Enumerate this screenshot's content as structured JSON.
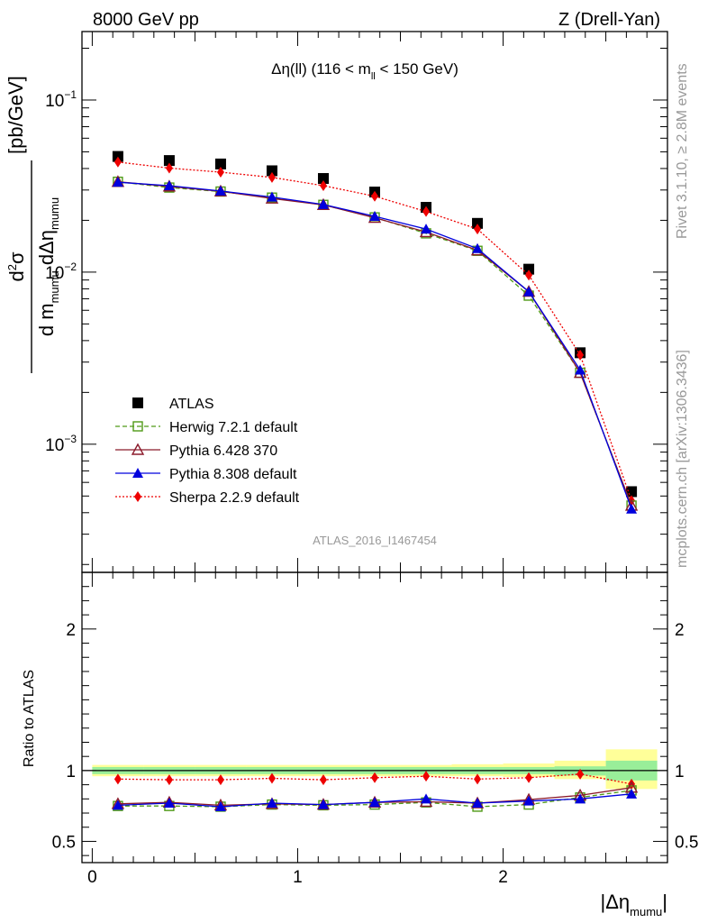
{
  "header": {
    "left": "8000 GeV pp",
    "right": "Z (Drell-Yan)"
  },
  "side_text": {
    "rivet": "Rivet 3.1.10, ≥ 2.8M events",
    "mcplots": "mcplots.cern.ch [arXiv:1306.3436]"
  },
  "analysis_id": "ATLAS_2016_I1467454",
  "chart_data": [
    {
      "panel": "main",
      "type": "scatter",
      "title": "Δη(ll) (116 < m_ll < 150 GeV)",
      "title_parts": {
        "pre": "Δη(ll) (116 < m",
        "sub": "ll",
        "post": " < 150 GeV)"
      },
      "ylabel": "d²σ / d m_mumu dΔη_mumu [pb/GeV]",
      "ylabel_parts": {
        "num": "d",
        "num_sup": "2",
        "num_sym": "σ",
        "den": "d m",
        "den_sub1": "mumu",
        "den_mid": " dΔη",
        "den_sub2": "mumu",
        "unit": "[pb/GeV]"
      },
      "yscale": "log",
      "ylim": [
        0.00018,
        0.25
      ],
      "xlim": [
        -0.05,
        2.8
      ],
      "yticks": [
        {
          "v": 0.1,
          "base": "10",
          "exp": "−1"
        },
        {
          "v": 0.01,
          "base": "10",
          "exp": "−2"
        },
        {
          "v": 0.001,
          "base": "10",
          "exp": "−3"
        }
      ],
      "legend_position": "center-left",
      "x": [
        0.125,
        0.375,
        0.625,
        0.875,
        1.125,
        1.375,
        1.625,
        1.875,
        2.125,
        2.375,
        2.625
      ],
      "series": [
        {
          "name": "ATLAS",
          "color": "#000000",
          "marker": "square-filled",
          "line": "none",
          "values": [
            0.047,
            0.0445,
            0.0425,
            0.0388,
            0.035,
            0.0292,
            0.0238,
            0.0192,
            0.0104,
            0.0034,
            0.00053
          ]
        },
        {
          "name": "Herwig 7.2.1 default",
          "color": "#4f9a17",
          "marker": "square-open",
          "line": "dashed",
          "values": [
            0.0335,
            0.031,
            0.0294,
            0.0271,
            0.0246,
            0.0208,
            0.0168,
            0.0133,
            0.0073,
            0.0026,
            0.00044
          ]
        },
        {
          "name": "Pythia 6.428 370",
          "color": "#8b1a2b",
          "marker": "triangle-open",
          "line": "solid",
          "values": [
            0.0335,
            0.0315,
            0.0295,
            0.0268,
            0.0246,
            0.0207,
            0.0171,
            0.0134,
            0.0077,
            0.0026,
            0.00044
          ]
        },
        {
          "name": "Pythia 8.308 default",
          "color": "#0000dd",
          "marker": "triangle-filled",
          "line": "solid",
          "values": [
            0.0333,
            0.0318,
            0.0296,
            0.0273,
            0.0247,
            0.0211,
            0.0178,
            0.0137,
            0.0077,
            0.0027,
            0.00042
          ]
        },
        {
          "name": "Sherpa 2.2.9 default",
          "color": "#ee0000",
          "marker": "diamond-filled",
          "line": "dotted",
          "values": [
            0.0436,
            0.0402,
            0.0381,
            0.0355,
            0.0318,
            0.0276,
            0.0225,
            0.0178,
            0.0096,
            0.0033,
            0.00047
          ]
        }
      ]
    },
    {
      "panel": "ratio",
      "type": "line",
      "ylabel": "Ratio to ATLAS",
      "xlabel": "|Δη_mumu|",
      "xlabel_parts": {
        "pre": "|Δη",
        "sub": "mumu",
        "post": "|"
      },
      "ylim": [
        0.35,
        2.4
      ],
      "xlim": [
        -0.05,
        2.8
      ],
      "yticks": [
        "0.5",
        "1",
        "2"
      ],
      "xticks": [
        "0",
        "1",
        "2"
      ],
      "reference_line": 1,
      "bin_edges": [
        0,
        0.25,
        0.5,
        0.75,
        1.0,
        1.25,
        1.5,
        1.75,
        2.0,
        2.25,
        2.5,
        2.75
      ],
      "band_stat": [
        [
          0.975,
          1.025
        ],
        [
          0.975,
          1.025
        ],
        [
          0.975,
          1.025
        ],
        [
          0.975,
          1.025
        ],
        [
          0.975,
          1.025
        ],
        [
          0.975,
          1.025
        ],
        [
          0.975,
          1.025
        ],
        [
          0.975,
          1.025
        ],
        [
          0.975,
          1.025
        ],
        [
          0.965,
          1.03
        ],
        [
          0.93,
          1.07
        ]
      ],
      "band_total": [
        [
          0.96,
          1.04
        ],
        [
          0.96,
          1.04
        ],
        [
          0.96,
          1.04
        ],
        [
          0.96,
          1.04
        ],
        [
          0.96,
          1.04
        ],
        [
          0.96,
          1.04
        ],
        [
          0.96,
          1.04
        ],
        [
          0.96,
          1.045
        ],
        [
          0.955,
          1.05
        ],
        [
          0.94,
          1.07
        ],
        [
          0.87,
          1.15
        ]
      ],
      "band_colors": {
        "total": "#ffff99",
        "stat": "#99ee99"
      },
      "x": [
        0.125,
        0.375,
        0.625,
        0.875,
        1.125,
        1.375,
        1.625,
        1.875,
        2.125,
        2.375,
        2.625
      ],
      "series": [
        {
          "name": "Herwig 7.2.1 default",
          "color": "#4f9a17",
          "marker": "square-open",
          "line": "dashed",
          "values": [
            0.75,
            0.75,
            0.745,
            0.76,
            0.755,
            0.76,
            0.775,
            0.745,
            0.76,
            0.81,
            0.86
          ]
        },
        {
          "name": "Pythia 6.428 370",
          "color": "#8b1a2b",
          "marker": "triangle-open",
          "line": "solid",
          "values": [
            0.765,
            0.775,
            0.755,
            0.765,
            0.76,
            0.775,
            0.78,
            0.77,
            0.795,
            0.825,
            0.88
          ]
        },
        {
          "name": "Pythia 8.308 default",
          "color": "#0000dd",
          "marker": "triangle-filled",
          "line": "solid",
          "values": [
            0.755,
            0.77,
            0.745,
            0.77,
            0.76,
            0.775,
            0.8,
            0.77,
            0.785,
            0.8,
            0.835
          ]
        },
        {
          "name": "Sherpa 2.2.9 default",
          "color": "#ee0000",
          "marker": "diamond-filled",
          "line": "dotted",
          "values": [
            0.94,
            0.935,
            0.935,
            0.945,
            0.935,
            0.95,
            0.96,
            0.94,
            0.95,
            0.975,
            0.905
          ]
        }
      ]
    }
  ]
}
